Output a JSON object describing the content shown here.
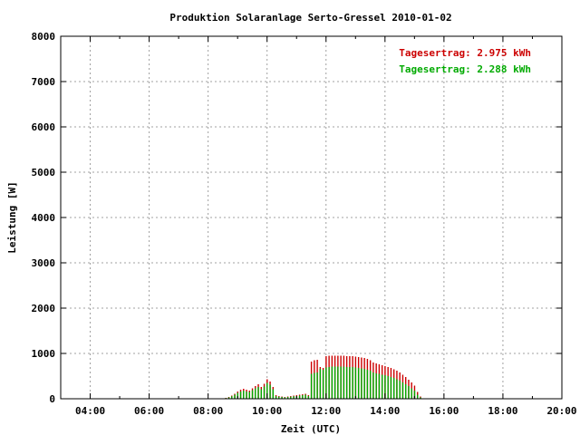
{
  "chart_data": {
    "type": "bar",
    "title": "Produktion Solaranlage Serto-Gressel 2010-01-02",
    "xlabel": "Zeit (UTC)",
    "ylabel": "Leistung [W]",
    "xlim": [
      3.0,
      20.0
    ],
    "ylim": [
      0,
      8000
    ],
    "x_ticks": [
      4,
      6,
      8,
      10,
      12,
      14,
      16,
      18,
      20
    ],
    "x_tick_labels": [
      "04:00",
      "06:00",
      "08:00",
      "10:00",
      "12:00",
      "14:00",
      "16:00",
      "18:00",
      "20:00"
    ],
    "y_ticks": [
      0,
      1000,
      2000,
      3000,
      4000,
      5000,
      6000,
      7000,
      8000
    ],
    "y_tick_labels": [
      "0",
      "1000",
      "2000",
      "3000",
      "4000",
      "5000",
      "6000",
      "7000",
      "8000"
    ],
    "grid": true,
    "legend_position": "top-right",
    "annotations": [
      {
        "text": "Tagesertrag: 2.975 kWh",
        "color": "#cc0000"
      },
      {
        "text": "Tagesertrag: 2.288 kWh",
        "color": "#00aa00"
      }
    ],
    "x": [
      8.5,
      8.6,
      8.7,
      8.8,
      8.9,
      9.0,
      9.1,
      9.2,
      9.3,
      9.4,
      9.5,
      9.6,
      9.7,
      9.8,
      9.9,
      10.0,
      10.1,
      10.2,
      10.3,
      10.4,
      10.5,
      10.6,
      10.7,
      10.8,
      10.9,
      11.0,
      11.1,
      11.2,
      11.3,
      11.4,
      11.5,
      11.6,
      11.7,
      11.8,
      11.9,
      12.0,
      12.1,
      12.2,
      12.3,
      12.4,
      12.5,
      12.6,
      12.7,
      12.8,
      12.9,
      13.0,
      13.1,
      13.2,
      13.3,
      13.4,
      13.5,
      13.6,
      13.7,
      13.8,
      13.9,
      14.0,
      14.1,
      14.2,
      14.3,
      14.4,
      14.5,
      14.6,
      14.7,
      14.8,
      14.9,
      15.0,
      15.1,
      15.2
    ],
    "series": [
      {
        "color": "#cc0000",
        "values": [
          10,
          20,
          40,
          70,
          110,
          160,
          200,
          220,
          200,
          180,
          230,
          280,
          320,
          260,
          330,
          430,
          380,
          260,
          80,
          60,
          50,
          40,
          50,
          60,
          70,
          80,
          90,
          100,
          110,
          80,
          820,
          850,
          860,
          700,
          680,
          940,
          950,
          950,
          950,
          950,
          950,
          950,
          940,
          940,
          940,
          930,
          920,
          910,
          900,
          880,
          850,
          800,
          780,
          760,
          740,
          720,
          700,
          680,
          650,
          620,
          580,
          530,
          480,
          420,
          360,
          290,
          150,
          50
        ]
      },
      {
        "color": "#00aa00",
        "values": [
          8,
          15,
          30,
          55,
          90,
          130,
          160,
          180,
          160,
          150,
          190,
          230,
          260,
          210,
          270,
          350,
          310,
          210,
          60,
          45,
          40,
          30,
          40,
          45,
          55,
          60,
          70,
          80,
          90,
          60,
          550,
          570,
          580,
          660,
          640,
          690,
          700,
          710,
          710,
          710,
          710,
          710,
          700,
          700,
          700,
          690,
          680,
          670,
          660,
          640,
          620,
          580,
          560,
          550,
          530,
          520,
          500,
          480,
          460,
          430,
          400,
          360,
          320,
          280,
          230,
          180,
          90,
          30
        ]
      }
    ]
  }
}
